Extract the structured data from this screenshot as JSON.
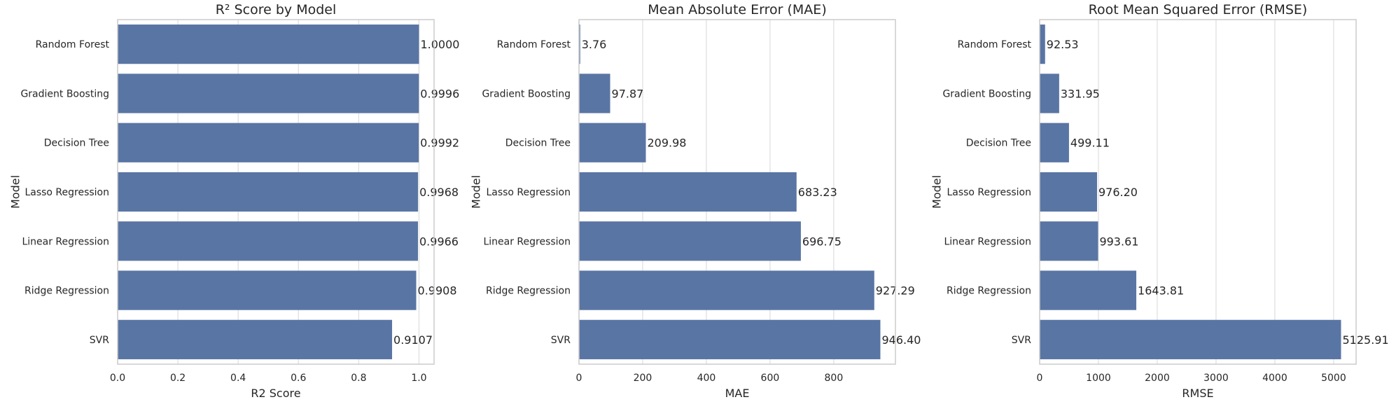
{
  "colors": {
    "bar": "#5975a4",
    "grid": "#dddddd",
    "spine": "#cccccc",
    "text": "#262626"
  },
  "chart_data": [
    {
      "type": "bar",
      "orientation": "horizontal",
      "title": "R² Score by Model",
      "xlabel": "R2 Score",
      "ylabel": "Model",
      "categories": [
        "Random Forest",
        "Gradient Boosting",
        "Decision Tree",
        "Lasso Regression",
        "Linear Regression",
        "Ridge Regression",
        "SVR"
      ],
      "values": [
        1.0,
        0.9996,
        0.9992,
        0.9968,
        0.9966,
        0.9908,
        0.9107
      ],
      "data_labels": [
        "1.0000",
        "0.9996",
        "0.9992",
        "0.9968",
        "0.9966",
        "0.9908",
        "0.9107"
      ],
      "xlim": [
        0,
        1.05
      ],
      "xticks": [
        0,
        0.2,
        0.4,
        0.6,
        0.8,
        1.0
      ],
      "xtick_labels": [
        "0.0",
        "0.2",
        "0.4",
        "0.6",
        "0.8",
        "1.0"
      ],
      "grid": "vertical"
    },
    {
      "type": "bar",
      "orientation": "horizontal",
      "title": "Mean Absolute Error (MAE)",
      "xlabel": "MAE",
      "ylabel": "Model",
      "categories": [
        "Random Forest",
        "Gradient Boosting",
        "Decision Tree",
        "Lasso Regression",
        "Linear Regression",
        "Ridge Regression",
        "SVR"
      ],
      "values": [
        3.76,
        97.87,
        209.98,
        683.23,
        696.75,
        927.29,
        946.4
      ],
      "data_labels": [
        "3.76",
        "97.87",
        "209.98",
        "683.23",
        "696.75",
        "927.29",
        "946.40"
      ],
      "xlim": [
        0,
        993.7
      ],
      "xticks": [
        0,
        200,
        400,
        600,
        800
      ],
      "xtick_labels": [
        "0",
        "200",
        "400",
        "600",
        "800"
      ],
      "grid": "vertical"
    },
    {
      "type": "bar",
      "orientation": "horizontal",
      "title": "Root Mean Squared Error (RMSE)",
      "xlabel": "RMSE",
      "ylabel": "Model",
      "categories": [
        "Random Forest",
        "Gradient Boosting",
        "Decision Tree",
        "Lasso Regression",
        "Linear Regression",
        "Ridge Regression",
        "SVR"
      ],
      "values": [
        92.53,
        331.95,
        499.11,
        976.2,
        993.61,
        1643.81,
        5125.91
      ],
      "data_labels": [
        "92.53",
        "331.95",
        "499.11",
        "976.20",
        "993.61",
        "1643.81",
        "5125.91"
      ],
      "xlim": [
        0,
        5382
      ],
      "xticks": [
        0,
        1000,
        2000,
        3000,
        4000,
        5000
      ],
      "xtick_labels": [
        "0",
        "1000",
        "2000",
        "3000",
        "4000",
        "5000"
      ],
      "grid": "vertical"
    }
  ]
}
